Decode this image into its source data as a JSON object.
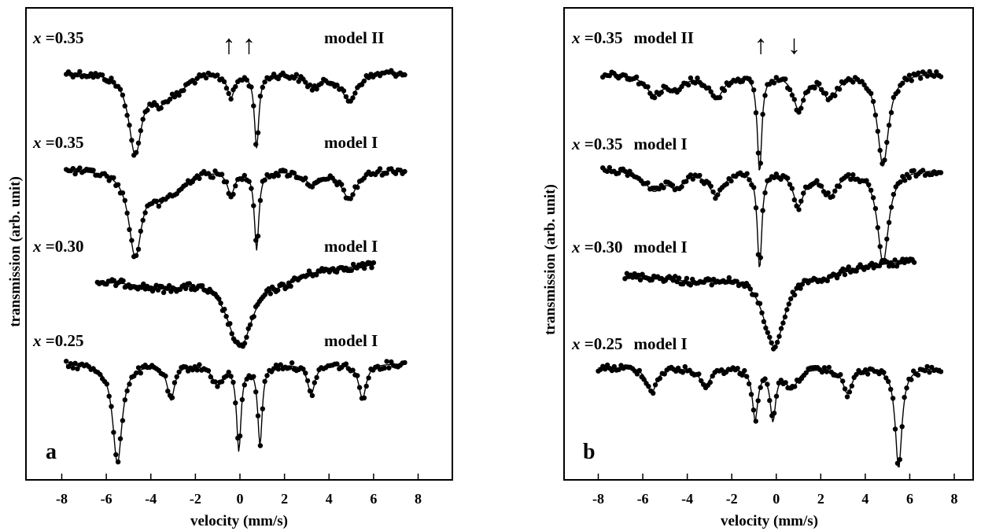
{
  "figure": {
    "panels": [
      {
        "id": "a",
        "letter": "a",
        "xlabel": "velocity  (mm/s)",
        "ylabel": "transmission  (arb. unit)",
        "xlim": [
          -9.5,
          9.5
        ],
        "xticks": [
          "-8",
          "-6",
          "-4",
          "-2",
          "0",
          "2",
          "4",
          "6",
          "8"
        ],
        "arrows": {
          "symbol_up": "↑",
          "symbol_down": "↓",
          "items": [
            {
              "x": -0.5,
              "dir": "up"
            },
            {
              "x": 0.4,
              "dir": "up"
            }
          ]
        },
        "spectra": [
          {
            "conc_var": "x",
            "conc_val": "=0.35",
            "model": "model II"
          },
          {
            "conc_var": "x",
            "conc_val": "=0.35",
            "model": "model I"
          },
          {
            "conc_var": "x",
            "conc_val": "=0.30",
            "model": "model I"
          },
          {
            "conc_var": "x",
            "conc_val": "=0.25",
            "model": "model I"
          }
        ]
      },
      {
        "id": "b",
        "letter": "b",
        "xlabel": "velocity  (mm/s)",
        "ylabel": "transmission  (arb. unit)",
        "xlim": [
          -9.5,
          9.5
        ],
        "xticks": [
          "-8",
          "-6",
          "-4",
          "-2",
          "0",
          "2",
          "4",
          "6",
          "8"
        ],
        "arrows": {
          "symbol_up": "↑",
          "symbol_down": "↓",
          "items": [
            {
              "x": -0.7,
              "dir": "up"
            },
            {
              "x": 0.8,
              "dir": "down"
            }
          ]
        },
        "spectra": [
          {
            "conc_var": "x",
            "conc_val": "=0.35",
            "model": "model II"
          },
          {
            "conc_var": "x",
            "conc_val": "=0.35",
            "model": "model I"
          },
          {
            "conc_var": "x",
            "conc_val": "=0.30",
            "model": "model I"
          },
          {
            "conc_var": "x",
            "conc_val": "=0.25",
            "model": "model I"
          }
        ]
      }
    ]
  },
  "chart_data": [
    {
      "type": "line",
      "panel": "a",
      "xlabel": "velocity  (mm/s)",
      "ylabel": "transmission  (arb. unit)",
      "xlim": [
        -9.5,
        9.5
      ],
      "grid": false,
      "series": [
        {
          "name": "x =0.35 model II",
          "x_range": [
            -7.8,
            7.4
          ],
          "dips": [
            {
              "x": -4.7,
              "depth": 0.85,
              "w": 0.35
            },
            {
              "x": -3.6,
              "depth": 0.25,
              "w": 0.5
            },
            {
              "x": -2.8,
              "depth": 0.15,
              "w": 0.5
            },
            {
              "x": -0.4,
              "depth": 0.25,
              "w": 0.2
            },
            {
              "x": 0.75,
              "depth": 0.8,
              "w": 0.12
            },
            {
              "x": 3.3,
              "depth": 0.15,
              "w": 0.5
            },
            {
              "x": 4.9,
              "depth": 0.3,
              "w": 0.4
            }
          ]
        },
        {
          "name": "x =0.35 model I",
          "x_range": [
            -7.8,
            7.4
          ],
          "dips": [
            {
              "x": -4.7,
              "depth": 0.9,
              "w": 0.35
            },
            {
              "x": -3.6,
              "depth": 0.25,
              "w": 0.5
            },
            {
              "x": -2.8,
              "depth": 0.15,
              "w": 0.5
            },
            {
              "x": -0.4,
              "depth": 0.25,
              "w": 0.2
            },
            {
              "x": 0.75,
              "depth": 0.85,
              "w": 0.12
            },
            {
              "x": 3.3,
              "depth": 0.15,
              "w": 0.5
            },
            {
              "x": 4.9,
              "depth": 0.3,
              "w": 0.4
            }
          ]
        },
        {
          "name": "x =0.30 model I",
          "x_range": [
            -6.4,
            6.0
          ],
          "slope": 0.25,
          "dips": [
            {
              "x": -3.5,
              "depth": 0.12,
              "w": 1.5
            },
            {
              "x": 0.0,
              "depth": 0.85,
              "w": 0.7
            },
            {
              "x": 2.0,
              "depth": 0.1,
              "w": 0.8
            }
          ]
        },
        {
          "name": "x =0.25 model I",
          "x_range": [
            -7.8,
            7.4
          ],
          "dips": [
            {
              "x": -5.5,
              "depth": 1.0,
              "w": 0.25
            },
            {
              "x": -3.1,
              "depth": 0.35,
              "w": 0.2
            },
            {
              "x": -1.0,
              "depth": 0.2,
              "w": 0.3
            },
            {
              "x": -0.05,
              "depth": 0.85,
              "w": 0.12
            },
            {
              "x": 0.9,
              "depth": 0.8,
              "w": 0.12
            },
            {
              "x": 3.2,
              "depth": 0.3,
              "w": 0.2
            },
            {
              "x": 5.5,
              "depth": 0.35,
              "w": 0.2
            }
          ]
        }
      ]
    },
    {
      "type": "line",
      "panel": "b",
      "xlabel": "velocity  (mm/s)",
      "ylabel": "transmission  (arb. unit)",
      "xlim": [
        -9.5,
        9.5
      ],
      "grid": false,
      "series": [
        {
          "name": "x =0.35 model II",
          "x_range": [
            -7.8,
            7.4
          ],
          "dips": [
            {
              "x": -5.5,
              "depth": 0.2,
              "w": 0.5
            },
            {
              "x": -4.5,
              "depth": 0.15,
              "w": 0.4
            },
            {
              "x": -2.7,
              "depth": 0.25,
              "w": 0.4
            },
            {
              "x": -0.75,
              "depth": 1.0,
              "w": 0.12
            },
            {
              "x": 1.0,
              "depth": 0.35,
              "w": 0.3
            },
            {
              "x": 2.4,
              "depth": 0.25,
              "w": 0.4
            },
            {
              "x": 4.8,
              "depth": 0.95,
              "w": 0.3
            }
          ]
        },
        {
          "name": "x =0.35 model I",
          "x_range": [
            -7.8,
            7.4
          ],
          "dips": [
            {
              "x": -5.5,
              "depth": 0.2,
              "w": 0.5
            },
            {
              "x": -4.5,
              "depth": 0.15,
              "w": 0.4
            },
            {
              "x": -2.7,
              "depth": 0.25,
              "w": 0.4
            },
            {
              "x": -0.75,
              "depth": 1.0,
              "w": 0.12
            },
            {
              "x": 1.0,
              "depth": 0.35,
              "w": 0.3
            },
            {
              "x": 2.4,
              "depth": 0.25,
              "w": 0.4
            },
            {
              "x": 4.8,
              "depth": 0.95,
              "w": 0.3
            }
          ]
        },
        {
          "name": "x =0.30 model I",
          "x_range": [
            -6.8,
            6.2
          ],
          "slope": 0.22,
          "dips": [
            {
              "x": -3.5,
              "depth": 0.1,
              "w": 1.5
            },
            {
              "x": -0.1,
              "depth": 0.85,
              "w": 0.6
            },
            {
              "x": 2.3,
              "depth": 0.1,
              "w": 0.8
            }
          ]
        },
        {
          "name": "x =0.25 model I",
          "x_range": [
            -8.0,
            7.4
          ],
          "dips": [
            {
              "x": -5.6,
              "depth": 0.25,
              "w": 0.25
            },
            {
              "x": -3.2,
              "depth": 0.2,
              "w": 0.25
            },
            {
              "x": -0.95,
              "depth": 0.5,
              "w": 0.15
            },
            {
              "x": -0.15,
              "depth": 0.5,
              "w": 0.15
            },
            {
              "x": 0.7,
              "depth": 0.2,
              "w": 0.3
            },
            {
              "x": 3.2,
              "depth": 0.25,
              "w": 0.25
            },
            {
              "x": 5.5,
              "depth": 1.0,
              "w": 0.18
            }
          ]
        }
      ]
    }
  ]
}
